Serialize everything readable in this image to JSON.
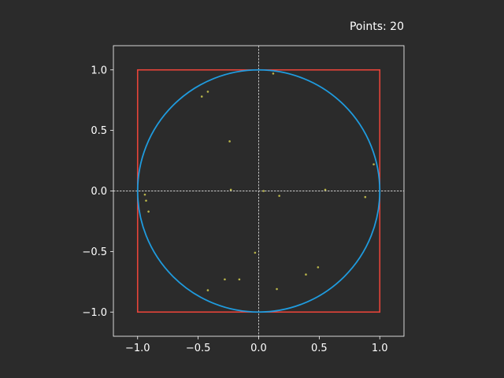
{
  "chart_data": {
    "type": "scatter",
    "title": "Points: 20",
    "xlabel": "",
    "ylabel": "",
    "xlim": [
      -1.2,
      1.2
    ],
    "ylim": [
      -1.2,
      1.2
    ],
    "x_ticks": [
      -1.0,
      -0.5,
      0.0,
      0.5,
      1.0
    ],
    "y_ticks": [
      -1.0,
      -0.5,
      0.0,
      0.5,
      1.0
    ],
    "x_tick_labels": [
      "−1.0",
      "−0.5",
      "0.0",
      "0.5",
      "1.0"
    ],
    "y_tick_labels": [
      "−1.0",
      "−0.5",
      "0.0",
      "0.5",
      "1.0"
    ],
    "grid": false,
    "reference_lines": [
      {
        "orientation": "vertical",
        "value": 0.0,
        "style": "dashed",
        "color": "#ffffff"
      },
      {
        "orientation": "horizontal",
        "value": 0.0,
        "style": "dashed",
        "color": "#ffffff"
      }
    ],
    "shapes": [
      {
        "kind": "square",
        "from": [
          -1.0,
          -1.0
        ],
        "to": [
          1.0,
          1.0
        ],
        "color": "#e8443a"
      },
      {
        "kind": "circle",
        "center": [
          0.0,
          0.0
        ],
        "radius": 1.0,
        "color": "#1f9bde"
      }
    ],
    "series": [
      {
        "color": "#b9b54a",
        "points": [
          [
            0.12,
            0.97
          ],
          [
            -0.42,
            0.82
          ],
          [
            -0.47,
            0.78
          ],
          [
            -0.24,
            0.41
          ],
          [
            0.95,
            0.22
          ],
          [
            -0.94,
            -0.03
          ],
          [
            -0.93,
            -0.08
          ],
          [
            -0.91,
            -0.17
          ],
          [
            -0.23,
            0.01
          ],
          [
            0.17,
            -0.04
          ],
          [
            0.55,
            0.01
          ],
          [
            0.88,
            -0.05
          ],
          [
            -0.03,
            -0.51
          ],
          [
            -0.28,
            -0.73
          ],
          [
            -0.16,
            -0.73
          ],
          [
            0.49,
            -0.63
          ],
          [
            0.39,
            -0.69
          ],
          [
            0.15,
            -0.81
          ],
          [
            -0.42,
            -0.82
          ],
          [
            0.04,
            0.0
          ]
        ]
      }
    ]
  },
  "colors": {
    "background": "#2b2b2b",
    "axes_frame": "#ffffff",
    "text": "#ffffff"
  }
}
